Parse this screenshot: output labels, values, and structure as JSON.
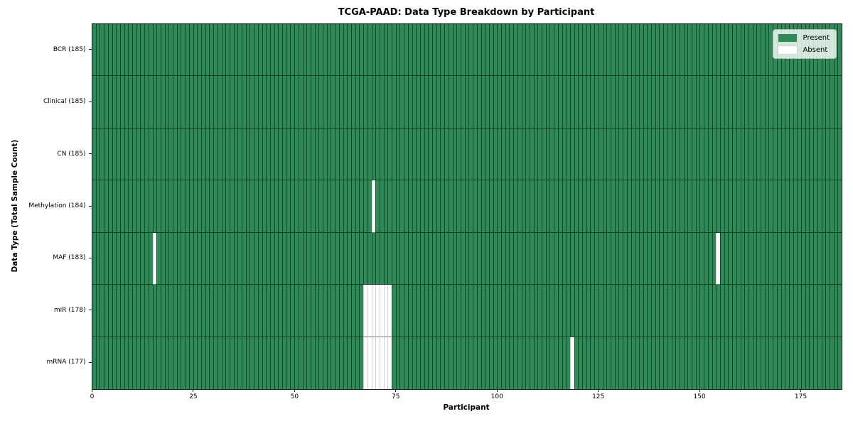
{
  "chart_data": {
    "type": "heatmap",
    "title": "TCGA-PAAD: Data Type Breakdown by Participant",
    "xlabel": "Participant",
    "ylabel": "Data Type (Total Sample Count)",
    "n_participants": 185,
    "x_ticks": [
      0,
      25,
      50,
      75,
      100,
      125,
      150,
      175
    ],
    "rows": [
      {
        "label": "BCR (185)",
        "data_type": "BCR",
        "total": 185,
        "absent_participants": []
      },
      {
        "label": "Clinical (185)",
        "data_type": "Clinical",
        "total": 185,
        "absent_participants": []
      },
      {
        "label": "CN (185)",
        "data_type": "CN",
        "total": 185,
        "absent_participants": []
      },
      {
        "label": "Methylation (184)",
        "data_type": "Methylation",
        "total": 184,
        "absent_participants": [
          69
        ]
      },
      {
        "label": "MAF (183)",
        "data_type": "MAF",
        "total": 183,
        "absent_participants": [
          15,
          154
        ]
      },
      {
        "label": "miR (178)",
        "data_type": "miR",
        "total": 178,
        "absent_participants": [
          67,
          68,
          69,
          70,
          71,
          72,
          73
        ]
      },
      {
        "label": "mRNA (177)",
        "data_type": "mRNA",
        "total": 177,
        "absent_participants": [
          67,
          68,
          69,
          70,
          71,
          72,
          73,
          118
        ]
      }
    ],
    "legend": {
      "position": "upper right",
      "items": [
        {
          "label": "Present",
          "color": "#2e8b57"
        },
        {
          "label": "Absent",
          "color": "#ffffff"
        }
      ]
    },
    "colors": {
      "present": "#2e8b57",
      "absent": "#ffffff",
      "grid_line": "rgba(0,0,0,0.5)"
    }
  }
}
